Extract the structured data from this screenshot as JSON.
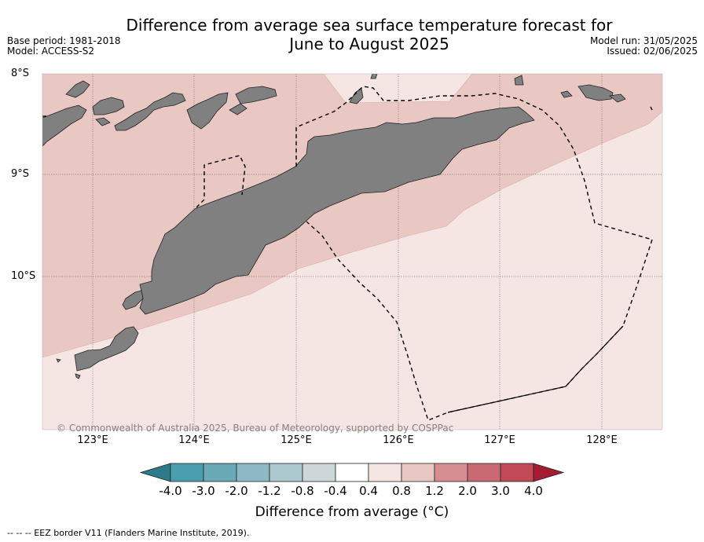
{
  "title": "Difference from average sea surface temperature forecast for\nJune to August 2025",
  "base_period": "Base period: 1981-2018",
  "model": "Model: ACCESS-S2",
  "model_run": "Model run: 31/05/2025",
  "issued": "Issued: 02/06/2025",
  "map": {
    "lat_labels": [
      "8°S",
      "9°S",
      "10°S"
    ],
    "lon_labels": [
      "123°E",
      "124°E",
      "125°E",
      "126°E",
      "127°E",
      "128°E"
    ],
    "copyright": "© Commonwealth of Australia 2025, Bureau of Meteorology, supported by COSPPac",
    "land_color": "#808080",
    "anomaly_0_4_to_0_8_color": "#f5e6e4",
    "anomaly_0_8_to_1_2_color": "#e9c7c2"
  },
  "colorbar": {
    "label": "Difference from average (°C)",
    "ticks": [
      "-4.0",
      "-3.0",
      "-2.0",
      "-1.2",
      "-0.8",
      "-0.4",
      "0.4",
      "0.8",
      "1.2",
      "2.0",
      "3.0",
      "4.0"
    ],
    "colors": [
      "#2e7a8a",
      "#4a9fae",
      "#6aa9b6",
      "#8cb9c4",
      "#acc9cd",
      "#cdd7d9",
      "#ffffff",
      "#f5e6e4",
      "#e9c7c2",
      "#d68e93",
      "#c96a73",
      "#c04a56",
      "#a51c32"
    ]
  },
  "footnote": "--  --  -- EEZ border V11 (Flanders Marine Institute, 2019)."
}
